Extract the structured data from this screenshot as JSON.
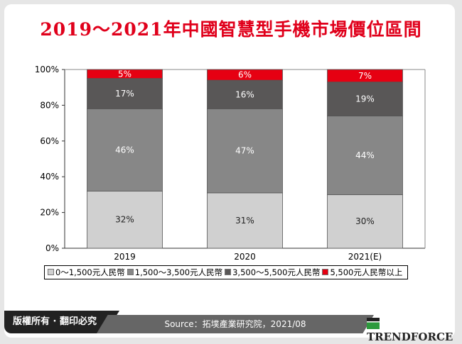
{
  "title": "2019～2021年中國智慧型手機市場價位區間",
  "chart_data": {
    "type": "bar",
    "stacked": true,
    "categories": [
      "2019",
      "2020",
      "2021(E)"
    ],
    "series": [
      {
        "name": "0～1,500元人民幣",
        "values": [
          32,
          31,
          30
        ],
        "color": "#d0d0d0",
        "label_color": "#222"
      },
      {
        "name": "1,500～3,500元人民幣",
        "values": [
          46,
          47,
          44
        ],
        "color": "#878787",
        "label_color": "#fff"
      },
      {
        "name": "3,500～5,500元人民幣",
        "values": [
          17,
          16,
          19
        ],
        "color": "#595757",
        "label_color": "#fff"
      },
      {
        "name": "5,500元人民幣以上",
        "values": [
          5,
          6,
          7
        ],
        "color": "#e60012",
        "label_color": "#fff"
      }
    ],
    "yticks": [
      "0%",
      "20%",
      "40%",
      "60%",
      "80%",
      "100%"
    ],
    "ylim": [
      0,
      100
    ],
    "legend": "bottom",
    "grid": false
  },
  "footer": {
    "copyright": "版權所有 · 翻印必究",
    "source": "Source：拓墣產業研究院，2021/08",
    "brand": "TRENDFORCE"
  }
}
